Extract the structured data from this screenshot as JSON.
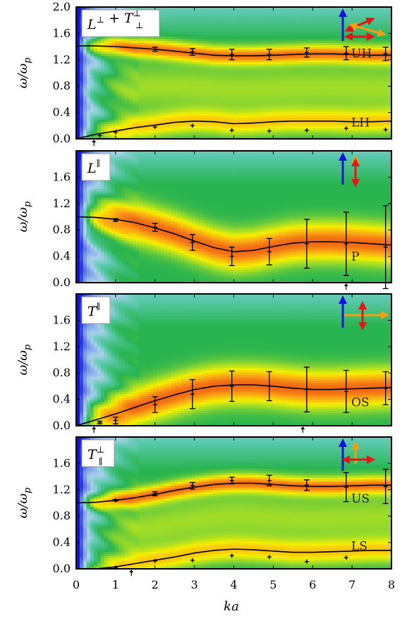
{
  "figure": {
    "xlabel": "ka",
    "ylabel": "ω/ω_p",
    "ylabel_main": "ω/ω",
    "ylabel_sub": "p"
  },
  "chart_data": [
    {
      "type": "heatmap",
      "panel_label": "L^⊥ + T^⊥_⊥",
      "label_parts": {
        "base1": "L",
        "sup1": "⊥",
        "plus": " + ",
        "base2": "T",
        "sup2": "⊥",
        "sub2": "⊥"
      },
      "xlim": [
        0,
        8
      ],
      "ylim": [
        0,
        2.0
      ],
      "x_ticks": [
        "0",
        "1",
        "2",
        "3",
        "4",
        "5",
        "6",
        "7",
        "8"
      ],
      "y_ticks": [
        "0.0",
        "0.4",
        "0.8",
        "1.2",
        "1.6",
        "2.0"
      ],
      "bands": [
        {
          "label": "UH",
          "y": 1.3
        },
        {
          "label": "LH",
          "y": 0.25
        }
      ],
      "curves": [
        {
          "name": "UH",
          "x": [
            0,
            0.5,
            1,
            1.5,
            2,
            2.5,
            3,
            3.5,
            4,
            4.5,
            5,
            5.5,
            6,
            6.5,
            7,
            7.5,
            8
          ],
          "y": [
            1.41,
            1.41,
            1.4,
            1.38,
            1.36,
            1.33,
            1.3,
            1.27,
            1.26,
            1.26,
            1.27,
            1.28,
            1.29,
            1.29,
            1.28,
            1.27,
            1.27
          ]
        },
        {
          "name": "LH",
          "x": [
            0,
            0.5,
            1,
            1.5,
            2,
            2.5,
            3,
            3.5,
            4,
            4.5,
            5,
            5.5,
            6,
            6.5,
            7,
            7.5,
            8
          ],
          "y": [
            0.0,
            0.07,
            0.12,
            0.17,
            0.21,
            0.25,
            0.27,
            0.26,
            0.23,
            0.24,
            0.26,
            0.27,
            0.27,
            0.27,
            0.26,
            0.26,
            0.27
          ]
        }
      ],
      "points": [
        {
          "x": 0.6,
          "y": 0.05,
          "err": 0
        },
        {
          "x": 1.0,
          "y": 0.1,
          "err": 0
        },
        {
          "x": 2.0,
          "y": 0.18,
          "err": 0
        },
        {
          "x": 2.95,
          "y": 0.2,
          "err": 0
        },
        {
          "x": 3.95,
          "y": 0.13,
          "err": 0
        },
        {
          "x": 4.9,
          "y": 0.12,
          "err": 0
        },
        {
          "x": 5.85,
          "y": 0.13,
          "err": 0
        },
        {
          "x": 6.85,
          "y": 0.16,
          "err": 0
        },
        {
          "x": 7.85,
          "y": 0.14,
          "err": 0
        },
        {
          "x": 2.0,
          "y": 1.36,
          "err": 0.03
        },
        {
          "x": 2.95,
          "y": 1.32,
          "err": 0.05
        },
        {
          "x": 3.95,
          "y": 1.28,
          "err": 0.08
        },
        {
          "x": 4.9,
          "y": 1.28,
          "err": 0.08
        },
        {
          "x": 5.85,
          "y": 1.31,
          "err": 0.07
        },
        {
          "x": 6.85,
          "y": 1.3,
          "err": 0.1
        },
        {
          "x": 7.85,
          "y": 1.29,
          "err": 0.1
        }
      ],
      "markers_x": [
        0.45
      ],
      "peak_profile": "double",
      "peaks": [
        1.38,
        0.9
      ],
      "arrows": [
        "blue-up",
        "red-diagonal",
        "orange-diagonal"
      ]
    },
    {
      "type": "heatmap",
      "panel_label": "L^∥",
      "label_parts": {
        "base1": "L",
        "sup1": "∥"
      },
      "xlim": [
        0,
        8
      ],
      "ylim": [
        0,
        2.0
      ],
      "x_ticks": [
        "0",
        "1",
        "2",
        "3",
        "4",
        "5",
        "6",
        "7",
        "8"
      ],
      "y_ticks": [
        "0.0",
        "0.4",
        "0.8",
        "1.2",
        "1.6"
      ],
      "bands": [
        {
          "label": "P",
          "y": 0.4
        }
      ],
      "curves": [
        {
          "name": "P",
          "x": [
            0,
            0.5,
            1,
            1.5,
            2,
            2.5,
            3,
            3.5,
            4,
            4.5,
            5,
            5.5,
            6,
            6.5,
            7,
            7.5,
            8
          ],
          "y": [
            1.0,
            0.99,
            0.96,
            0.91,
            0.83,
            0.74,
            0.63,
            0.53,
            0.47,
            0.49,
            0.55,
            0.6,
            0.62,
            0.62,
            0.61,
            0.59,
            0.57
          ]
        }
      ],
      "points": [
        {
          "x": 1.0,
          "y": 0.95,
          "err": 0.02
        },
        {
          "x": 2.0,
          "y": 0.84,
          "err": 0.06
        },
        {
          "x": 2.95,
          "y": 0.61,
          "err": 0.12
        },
        {
          "x": 3.95,
          "y": 0.4,
          "err": 0.14
        },
        {
          "x": 4.9,
          "y": 0.47,
          "err": 0.2
        },
        {
          "x": 5.85,
          "y": 0.59,
          "err": 0.37
        },
        {
          "x": 6.85,
          "y": 0.59,
          "err": 0.48
        },
        {
          "x": 7.85,
          "y": 0.54,
          "err": 0.63
        }
      ],
      "markers_x": [
        6.85
      ],
      "peak_profile": "single",
      "peaks": [
        0.75
      ],
      "arrows": [
        "blue-up",
        "orange-vertical",
        "red-vertical"
      ]
    },
    {
      "type": "heatmap",
      "panel_label": "T^∥",
      "label_parts": {
        "base1": "T",
        "sup1": "∥"
      },
      "xlim": [
        0,
        8
      ],
      "ylim": [
        0,
        2.0
      ],
      "x_ticks": [
        "0",
        "1",
        "2",
        "3",
        "4",
        "5",
        "6",
        "7",
        "8"
      ],
      "y_ticks": [
        "0.0",
        "0.4",
        "0.8",
        "1.2",
        "1.6"
      ],
      "bands": [
        {
          "label": "OS",
          "y": 0.36
        }
      ],
      "curves": [
        {
          "name": "OS",
          "x": [
            0,
            0.5,
            1,
            1.5,
            2,
            2.5,
            3,
            3.5,
            4,
            4.5,
            5,
            5.5,
            6,
            6.5,
            7,
            7.5,
            8
          ],
          "y": [
            0.0,
            0.09,
            0.18,
            0.28,
            0.38,
            0.47,
            0.55,
            0.6,
            0.62,
            0.62,
            0.6,
            0.57,
            0.55,
            0.55,
            0.56,
            0.57,
            0.58
          ]
        }
      ],
      "points": [
        {
          "x": 0.6,
          "y": 0.05,
          "err": 0.02
        },
        {
          "x": 1.0,
          "y": 0.08,
          "err": 0.05
        },
        {
          "x": 2.0,
          "y": 0.32,
          "err": 0.12
        },
        {
          "x": 2.95,
          "y": 0.48,
          "err": 0.22
        },
        {
          "x": 3.95,
          "y": 0.6,
          "err": 0.23
        },
        {
          "x": 4.9,
          "y": 0.6,
          "err": 0.22
        },
        {
          "x": 5.85,
          "y": 0.55,
          "err": 0.34
        },
        {
          "x": 6.85,
          "y": 0.52,
          "err": 0.32
        },
        {
          "x": 7.85,
          "y": 0.57,
          "err": 0.25
        }
      ],
      "markers_x": [
        0.45,
        5.75
      ],
      "peak_profile": "single",
      "peaks": [
        0.65
      ],
      "arrows": [
        "blue-up",
        "orange-horizontal",
        "red-vertical"
      ]
    },
    {
      "type": "heatmap",
      "panel_label": "T^⊥_∥",
      "label_parts": {
        "base1": "T",
        "sup1": "⊥",
        "sub1": "∥"
      },
      "xlim": [
        0,
        8
      ],
      "ylim": [
        0,
        2.0
      ],
      "x_ticks": [
        "0",
        "1",
        "2",
        "3",
        "4",
        "5",
        "6",
        "7",
        "8"
      ],
      "y_ticks": [
        "0.0",
        "0.4",
        "0.8",
        "1.2",
        "1.6"
      ],
      "bands": [
        {
          "label": "US",
          "y": 1.07
        },
        {
          "label": "LS",
          "y": 0.35
        }
      ],
      "curves": [
        {
          "name": "US",
          "x": [
            0,
            0.5,
            1,
            1.5,
            2,
            2.5,
            3,
            3.5,
            4,
            4.5,
            5,
            5.5,
            6,
            6.5,
            7,
            7.5,
            8
          ],
          "y": [
            1.0,
            1.01,
            1.04,
            1.08,
            1.13,
            1.19,
            1.24,
            1.28,
            1.3,
            1.3,
            1.28,
            1.26,
            1.25,
            1.25,
            1.26,
            1.27,
            1.27
          ]
        },
        {
          "name": "LS",
          "x": [
            0,
            0.5,
            1,
            1.5,
            2,
            2.5,
            3,
            3.5,
            4,
            4.5,
            5,
            5.5,
            6,
            6.5,
            7,
            7.5,
            8
          ],
          "y": [
            0.0,
            0.0,
            0.03,
            0.08,
            0.13,
            0.18,
            0.24,
            0.28,
            0.3,
            0.29,
            0.27,
            0.25,
            0.25,
            0.26,
            0.27,
            0.28,
            0.28
          ]
        }
      ],
      "points": [
        {
          "x": 1.0,
          "y": 0.02,
          "err": 0
        },
        {
          "x": 2.0,
          "y": 0.12,
          "err": 0
        },
        {
          "x": 2.95,
          "y": 0.13,
          "err": 0
        },
        {
          "x": 3.95,
          "y": 0.2,
          "err": 0
        },
        {
          "x": 4.9,
          "y": 0.18,
          "err": 0
        },
        {
          "x": 5.85,
          "y": 0.11,
          "err": 0
        },
        {
          "x": 6.85,
          "y": 0.17,
          "err": 0
        },
        {
          "x": 1.0,
          "y": 1.04,
          "err": 0.01
        },
        {
          "x": 2.0,
          "y": 1.14,
          "err": 0.03
        },
        {
          "x": 2.95,
          "y": 1.26,
          "err": 0.05
        },
        {
          "x": 3.95,
          "y": 1.34,
          "err": 0.05
        },
        {
          "x": 4.9,
          "y": 1.34,
          "err": 0.08
        },
        {
          "x": 5.85,
          "y": 1.27,
          "err": 0.08
        },
        {
          "x": 6.85,
          "y": 1.24,
          "err": 0.22
        },
        {
          "x": 7.85,
          "y": 1.25,
          "err": 0.26
        }
      ],
      "markers_x": [
        1.4
      ],
      "peak_profile": "double",
      "peaks": [
        1.22,
        0.55
      ],
      "arrows": [
        "blue-up",
        "orange-vertical",
        "red-horizontal"
      ]
    }
  ]
}
